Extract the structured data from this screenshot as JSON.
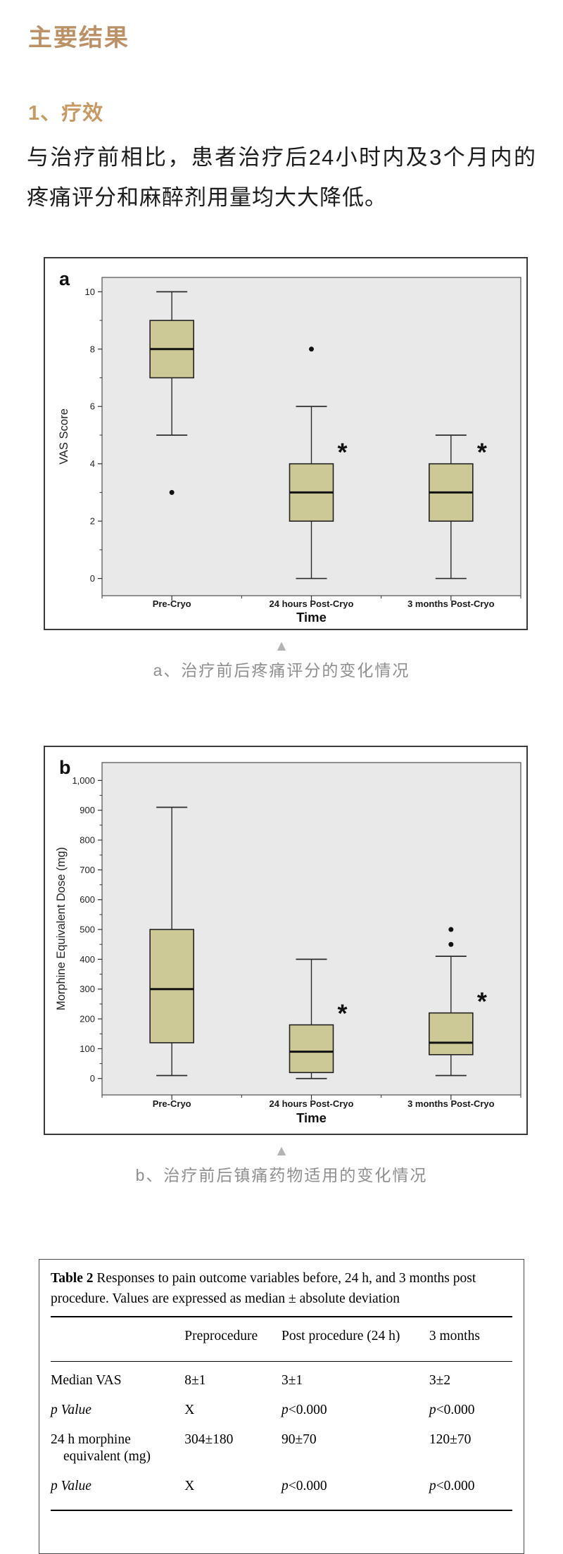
{
  "page": {
    "section_title": "主要结果",
    "subsection_title": "1、疗效",
    "paragraph": "与治疗前相比，患者治疗后24小时内及3个月内的疼痛评分和麻醉剂用量均大大降低。",
    "marker_symbol": "▲",
    "caption_a": "a、治疗前后疼痛评分的变化情况",
    "caption_b": "b、治疗前后镇痛药物适用的变化情况"
  },
  "colors": {
    "title_gold": "#bd9166",
    "heading_tan": "#c79a64",
    "body_text": "#1c1c1c",
    "caption_gray": "#8f8f8f",
    "marker_gray": "#b3b3b3",
    "box_fill": "#cdc996",
    "plot_bg": "#e9e9e9"
  },
  "chart_data": [
    {
      "type": "box",
      "panel_label": "a",
      "xlabel": "Time",
      "ylabel": "VAS Score",
      "ylim": [
        -0.6,
        10.5
      ],
      "yticks": [
        {
          "v": 0,
          "label": "0"
        },
        {
          "v": 2,
          "label": "2"
        },
        {
          "v": 4,
          "label": "4"
        },
        {
          "v": 6,
          "label": "6"
        },
        {
          "v": 8,
          "label": "8"
        },
        {
          "v": 10,
          "label": "10"
        }
      ],
      "yticks_minor": [
        1,
        3,
        5,
        7,
        9
      ],
      "categories": [
        "Pre-Cryo",
        "24 hours Post-Cryo",
        "3 months Post-Cryo"
      ],
      "significance_symbol": "*",
      "series": [
        {
          "category": "Pre-Cryo",
          "whisker_low": 5,
          "q1": 7,
          "median": 8,
          "q3": 9,
          "whisker_high": 10,
          "outliers": [
            3
          ],
          "significant": false
        },
        {
          "category": "24 hours Post-Cryo",
          "whisker_low": 0,
          "q1": 2,
          "median": 3,
          "q3": 4,
          "whisker_high": 6,
          "outliers": [
            8
          ],
          "significant": true
        },
        {
          "category": "3 months Post-Cryo",
          "whisker_low": 0,
          "q1": 2,
          "median": 3,
          "q3": 4,
          "whisker_high": 5,
          "outliers": [],
          "significant": true
        }
      ],
      "box_fill": "#cdc996",
      "plot_bg": "#e9e9e9",
      "grid": false,
      "legend": "none"
    },
    {
      "type": "box",
      "panel_label": "b",
      "xlabel": "Time",
      "ylabel": "Morphine Equivalent Dose (mg)",
      "ylim": [
        -55,
        1060
      ],
      "yticks": [
        {
          "v": 0,
          "label": "0"
        },
        {
          "v": 100,
          "label": "100"
        },
        {
          "v": 200,
          "label": "200"
        },
        {
          "v": 300,
          "label": "300"
        },
        {
          "v": 400,
          "label": "400"
        },
        {
          "v": 500,
          "label": "500"
        },
        {
          "v": 600,
          "label": "600"
        },
        {
          "v": 700,
          "label": "700"
        },
        {
          "v": 800,
          "label": "800"
        },
        {
          "v": 900,
          "label": "900"
        },
        {
          "v": 1000,
          "label": "1,000"
        }
      ],
      "yticks_minor": [
        50,
        150,
        250,
        350,
        450,
        550,
        650,
        750,
        850,
        950
      ],
      "categories": [
        "Pre-Cryo",
        "24 hours Post-Cryo",
        "3 months Post-Cryo"
      ],
      "significance_symbol": "*",
      "series": [
        {
          "category": "Pre-Cryo",
          "whisker_low": 10,
          "q1": 120,
          "median": 300,
          "q3": 500,
          "whisker_high": 910,
          "outliers": [],
          "significant": false
        },
        {
          "category": "24 hours Post-Cryo",
          "whisker_low": 0,
          "q1": 20,
          "median": 90,
          "q3": 180,
          "whisker_high": 400,
          "outliers": [],
          "significant": true
        },
        {
          "category": "3 months Post-Cryo",
          "whisker_low": 10,
          "q1": 80,
          "median": 120,
          "q3": 220,
          "whisker_high": 410,
          "outliers": [
            450,
            500
          ],
          "significant": true
        }
      ],
      "box_fill": "#cdc996",
      "plot_bg": "#e9e9e9",
      "grid": false,
      "legend": "none"
    }
  ],
  "table": {
    "title_bold": "Table 2",
    "title_rest": "Responses to pain outcome variables before, 24 h, and 3 months post procedure. Values are expressed as median ± absolute deviation",
    "columns": [
      "",
      "Preprocedure",
      "Post procedure (24 h)",
      "3 months"
    ],
    "rows": [
      {
        "label": "Median VAS",
        "italic": false,
        "cells": [
          "8±1",
          "3±1",
          "3±2"
        ]
      },
      {
        "label": "p Value",
        "italic": true,
        "cells": [
          "X",
          "p<0.000",
          "p<0.000"
        ]
      },
      {
        "label": "24 h morphine equivalent (mg)",
        "italic": false,
        "cells": [
          "304±180",
          "90±70",
          "120±70"
        ]
      },
      {
        "label": "p Value",
        "italic": true,
        "cells": [
          "X",
          "p<0.000",
          "p<0.000"
        ]
      }
    ]
  }
}
